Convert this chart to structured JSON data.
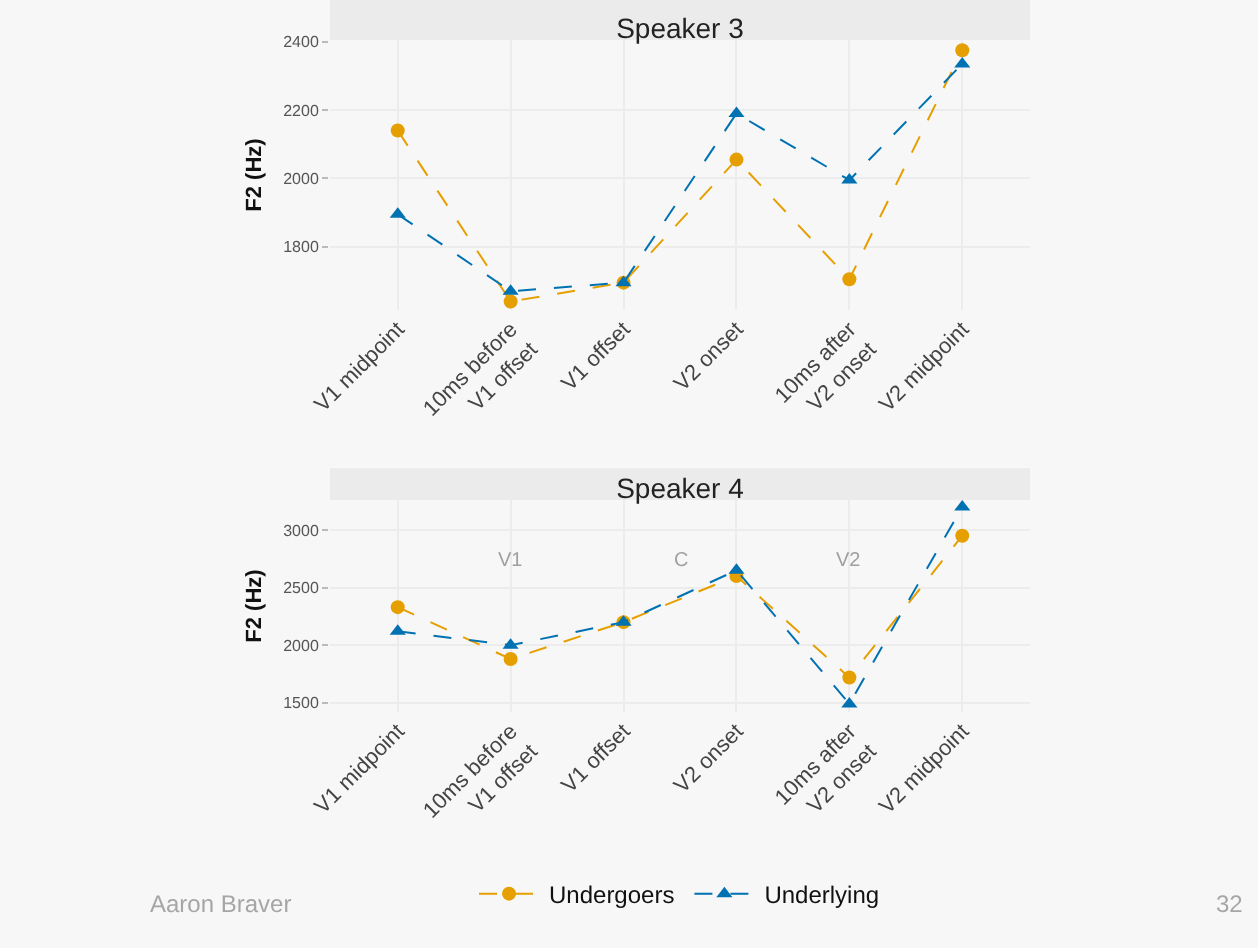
{
  "chart_data": [
    {
      "type": "line",
      "title": "Speaker 3",
      "ylabel": "F2 (Hz)",
      "categories": [
        "V1 midpoint",
        "10ms before\nV1 offset",
        "V1 offset",
        "V2 onset",
        "10ms after\nV2 onset",
        "V2 midpoint"
      ],
      "ylim": [
        1615,
        2405
      ],
      "yticks": [
        1800,
        2000,
        2200,
        2400
      ],
      "grid": true,
      "legend": false,
      "line_style": "dashed",
      "series": [
        {
          "color": "#e69f00",
          "marker": "circle",
          "values": [
            2140,
            1640,
            1695,
            2055,
            1705,
            2375
          ]
        },
        {
          "color": "#0072b2",
          "marker": "triangle",
          "values": [
            1895,
            1670,
            1695,
            2190,
            1995,
            2335
          ]
        }
      ]
    },
    {
      "type": "line",
      "title": "Speaker 4",
      "ylabel": "F2 (Hz)",
      "categories": [
        "V1 midpoint",
        "10ms before\nV1 offset",
        "V1 offset",
        "V2 onset",
        "10ms after\nV2 onset",
        "V2 midpoint"
      ],
      "ylim": [
        1420,
        3260
      ],
      "yticks": [
        1500,
        2000,
        2500,
        3000
      ],
      "grid": true,
      "legend": "bottom",
      "line_style": "dashed",
      "series": [
        {
          "name": "Undergoers",
          "color": "#e69f00",
          "marker": "circle",
          "values": [
            2330,
            1880,
            2200,
            2600,
            1720,
            2950
          ]
        },
        {
          "name": "Underlying",
          "color": "#0072b2",
          "marker": "triangle",
          "values": [
            2120,
            2000,
            2200,
            2650,
            1490,
            3200
          ]
        }
      ],
      "annotations": [
        "V1",
        "C",
        "V2",
        "Aaron Braver",
        "32"
      ]
    }
  ]
}
